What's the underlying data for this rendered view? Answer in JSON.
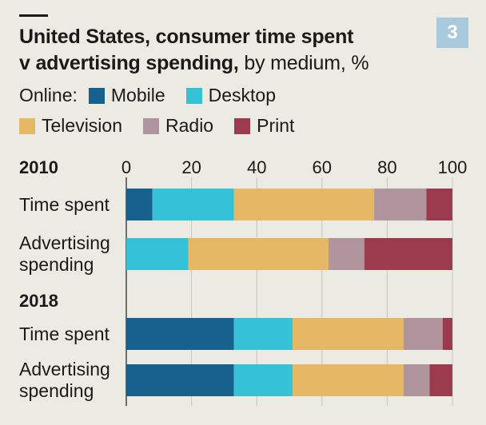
{
  "title": {
    "main_line1": "United States, consumer time spent",
    "main_line2": "v advertising spending,",
    "sub": "by medium, %"
  },
  "badge": "3",
  "legend": {
    "online_label": "Online:",
    "items": [
      {
        "name": "Mobile",
        "color": "#17618f"
      },
      {
        "name": "Desktop",
        "color": "#36c2d6"
      },
      {
        "name": "Television",
        "color": "#e6b866"
      },
      {
        "name": "Radio",
        "color": "#b0959e"
      },
      {
        "name": "Print",
        "color": "#9c3a4e"
      }
    ]
  },
  "chart_data": {
    "type": "bar",
    "orientation": "horizontal",
    "stacked": true,
    "xlim": [
      0,
      100
    ],
    "ticks": [
      0,
      20,
      40,
      60,
      80,
      100
    ],
    "series_names": [
      "Mobile",
      "Desktop",
      "Television",
      "Radio",
      "Print"
    ],
    "groups": [
      {
        "label": "2010",
        "bars": [
          {
            "label": [
              "Time spent"
            ],
            "values": [
              8,
              25,
              43,
              16,
              8
            ]
          },
          {
            "label": [
              "Advertising",
              "spending"
            ],
            "values": [
              0,
              19,
              43,
              11,
              27
            ]
          }
        ]
      },
      {
        "label": "2018",
        "bars": [
          {
            "label": [
              "Time spent"
            ],
            "values": [
              33,
              18,
              34,
              12,
              3
            ]
          },
          {
            "label": [
              "Advertising",
              "spending"
            ],
            "values": [
              33,
              18,
              34,
              8,
              7
            ]
          }
        ]
      }
    ]
  }
}
